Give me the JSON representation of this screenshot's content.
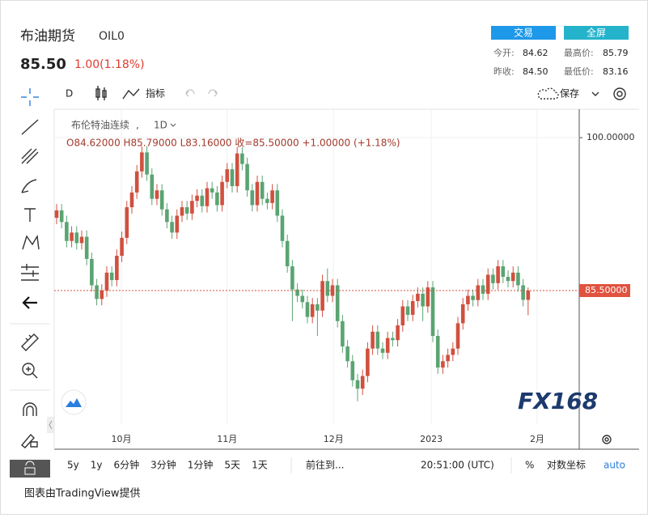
{
  "header": {
    "title": "布油期货",
    "symbol": "OIL0",
    "price": "85.50",
    "change": "1.00(1.18%)"
  },
  "buttons": [
    "交易",
    "全屏"
  ],
  "stats": [
    [
      "今开:",
      "84.62",
      "最高价:",
      "85.79"
    ],
    [
      "昨收:",
      "84.50",
      "最低价:",
      "83.16"
    ]
  ],
  "toolbar": {
    "interval": "D",
    "indicators": "指标",
    "save": "保存"
  },
  "chart_data": {
    "type": "candlestick",
    "legend": {
      "name": "布伦特油连续",
      "interval": "1D",
      "ohlc": "O84.62000 H85.79000 L83.16000 收=85.50000 +1.00000 (+1.18%)"
    },
    "x": [
      0,
      1,
      2,
      3,
      4,
      5,
      6,
      7,
      8,
      9,
      10,
      11,
      12,
      13,
      14,
      15,
      16,
      17,
      18,
      19,
      20,
      21,
      22,
      23,
      24,
      25,
      26,
      27,
      28,
      29,
      30,
      31,
      32,
      33,
      34,
      35,
      36,
      37,
      38,
      39,
      40,
      41,
      42,
      43,
      44,
      45,
      46,
      47,
      48,
      49,
      50,
      51,
      52,
      53,
      54,
      55,
      56,
      57,
      58,
      59,
      60,
      61,
      62,
      63,
      64,
      65,
      66,
      67,
      68,
      69,
      70,
      71,
      72,
      73,
      74,
      75,
      76,
      77,
      78,
      79,
      80,
      81,
      82,
      83,
      84,
      85,
      86,
      87,
      88,
      89,
      90,
      91,
      92,
      93,
      94
    ],
    "open": [
      92.4,
      93.1,
      92.0,
      90.2,
      91.0,
      90.0,
      90.6,
      88.5,
      86.0,
      84.7,
      85.5,
      87.2,
      86.5,
      88.8,
      90.5,
      93.4,
      94.8,
      96.8,
      98.6,
      96.5,
      94.2,
      95.0,
      93.2,
      92.0,
      91.0,
      92.6,
      93.4,
      92.8,
      94.0,
      94.5,
      93.5,
      95.2,
      94.8,
      93.6,
      95.8,
      97.0,
      95.4,
      98.5,
      97.5,
      95.0,
      93.6,
      95.8,
      94.2,
      93.8,
      95.0,
      92.6,
      90.2,
      87.8,
      85.6,
      85.0,
      84.4,
      83.0,
      84.2,
      83.6,
      86.4,
      85.0,
      86.0,
      82.6,
      80.2,
      78.8,
      77.0,
      76.2,
      77.4,
      80.0,
      81.6,
      80.0,
      79.6,
      81.0,
      80.8,
      82.2,
      84.0,
      83.2,
      84.5,
      85.2,
      84.0,
      85.8,
      81.2,
      78.2,
      78.8,
      79.4,
      80.0,
      82.4,
      84.2,
      85.0,
      84.6,
      86.0,
      85.2,
      87.0,
      86.2,
      87.8,
      86.8,
      86.4,
      87.2,
      86.0,
      84.62
    ],
    "high": [
      93.7,
      93.7,
      92.6,
      91.6,
      91.6,
      91.2,
      91.2,
      89.1,
      86.6,
      86.1,
      87.8,
      87.8,
      89.4,
      91.1,
      94.0,
      95.4,
      97.4,
      99.2,
      99.2,
      97.1,
      95.6,
      95.6,
      93.8,
      92.6,
      93.2,
      94.0,
      94.0,
      94.6,
      95.1,
      95.1,
      95.8,
      95.8,
      95.4,
      96.4,
      97.6,
      97.6,
      99.1,
      99.1,
      98.1,
      95.6,
      96.4,
      96.4,
      94.8,
      95.6,
      95.6,
      93.2,
      90.8,
      88.4,
      86.2,
      85.6,
      85.0,
      84.8,
      84.8,
      87.0,
      87.6,
      86.6,
      86.6,
      83.2,
      80.8,
      79.4,
      77.6,
      78.0,
      80.6,
      82.2,
      82.2,
      80.6,
      81.6,
      81.6,
      82.8,
      84.6,
      84.6,
      85.1,
      85.8,
      85.8,
      86.4,
      86.4,
      81.8,
      79.4,
      80.0,
      80.6,
      83.0,
      84.8,
      85.6,
      85.6,
      86.6,
      86.6,
      87.6,
      87.6,
      88.4,
      88.4,
      87.4,
      87.8,
      87.8,
      86.6,
      85.79
    ],
    "low": [
      91.8,
      91.4,
      89.6,
      89.6,
      89.4,
      89.4,
      87.9,
      85.4,
      84.1,
      84.1,
      84.9,
      85.9,
      85.9,
      88.2,
      89.9,
      92.8,
      94.2,
      96.2,
      95.9,
      93.6,
      93.6,
      92.6,
      91.4,
      90.4,
      90.4,
      92.0,
      92.2,
      92.2,
      93.4,
      92.9,
      92.9,
      94.2,
      93.0,
      93.0,
      95.2,
      94.8,
      94.8,
      96.9,
      94.4,
      93.0,
      93.0,
      93.6,
      93.2,
      93.2,
      92.0,
      89.6,
      87.2,
      82.6,
      84.4,
      83.8,
      82.4,
      82.4,
      81.2,
      83.0,
      84.4,
      84.4,
      82.0,
      79.6,
      78.2,
      76.4,
      75.0,
      75.6,
      76.8,
      79.4,
      79.4,
      79.0,
      79.0,
      80.2,
      80.2,
      81.6,
      82.6,
      82.6,
      83.9,
      82.6,
      83.4,
      80.6,
      77.6,
      77.6,
      78.2,
      78.8,
      79.4,
      81.8,
      83.6,
      84.0,
      84.0,
      84.6,
      84.6,
      85.6,
      85.6,
      86.2,
      85.8,
      85.8,
      85.4,
      84.0,
      83.16
    ],
    "close": [
      93.1,
      92.0,
      90.2,
      91.0,
      90.0,
      90.6,
      88.5,
      86.0,
      84.7,
      85.5,
      87.2,
      86.5,
      88.8,
      90.5,
      93.4,
      94.8,
      96.8,
      98.6,
      96.5,
      94.2,
      95.0,
      93.2,
      92.0,
      91.0,
      92.6,
      93.4,
      92.8,
      94.0,
      94.5,
      93.5,
      95.2,
      94.8,
      93.6,
      95.8,
      97.0,
      95.4,
      98.5,
      97.5,
      95.0,
      93.6,
      95.8,
      94.2,
      93.8,
      95.0,
      92.6,
      90.2,
      87.8,
      85.6,
      85.0,
      84.4,
      83.0,
      84.2,
      83.6,
      86.4,
      85.0,
      86.0,
      82.6,
      80.2,
      78.8,
      77.0,
      76.2,
      77.4,
      80.0,
      81.6,
      80.0,
      79.6,
      81.0,
      80.8,
      82.2,
      84.0,
      83.2,
      84.5,
      85.2,
      84.0,
      85.8,
      81.2,
      78.2,
      78.8,
      79.4,
      80.0,
      82.4,
      84.2,
      85.0,
      84.6,
      86.0,
      85.2,
      87.0,
      86.2,
      87.8,
      86.8,
      86.4,
      87.2,
      86.0,
      84.62,
      85.5
    ],
    "up_color": "#d0503f",
    "down_color": "#5aa472",
    "xlim": [
      -0.48,
      104.19
    ],
    "xticks": [
      {
        "value": 12.9,
        "label": "10月"
      },
      {
        "value": 34.0,
        "label": "11月"
      },
      {
        "value": 55.2,
        "label": "12月"
      },
      {
        "value": 74.7,
        "label": "2023"
      },
      {
        "value": 95.8,
        "label": "2月"
      }
    ],
    "ylim": [
      72.76,
      102.69
    ],
    "yticks": [
      {
        "value": 100,
        "label": "100.00000"
      }
    ],
    "last_price": {
      "value": 85.5,
      "label": "85.50000"
    },
    "watermark": "FX168",
    "grid": true
  },
  "bottom_bar": {
    "ranges": [
      "5y",
      "1y",
      "6分钟",
      "3分钟",
      "1分钟",
      "5天",
      "1天"
    ],
    "goto": "前往到...",
    "time": "20:51:00 (UTC)",
    "percent": "%",
    "log": "对数坐标",
    "auto": "auto"
  },
  "footer": "图表由TradingView提供"
}
